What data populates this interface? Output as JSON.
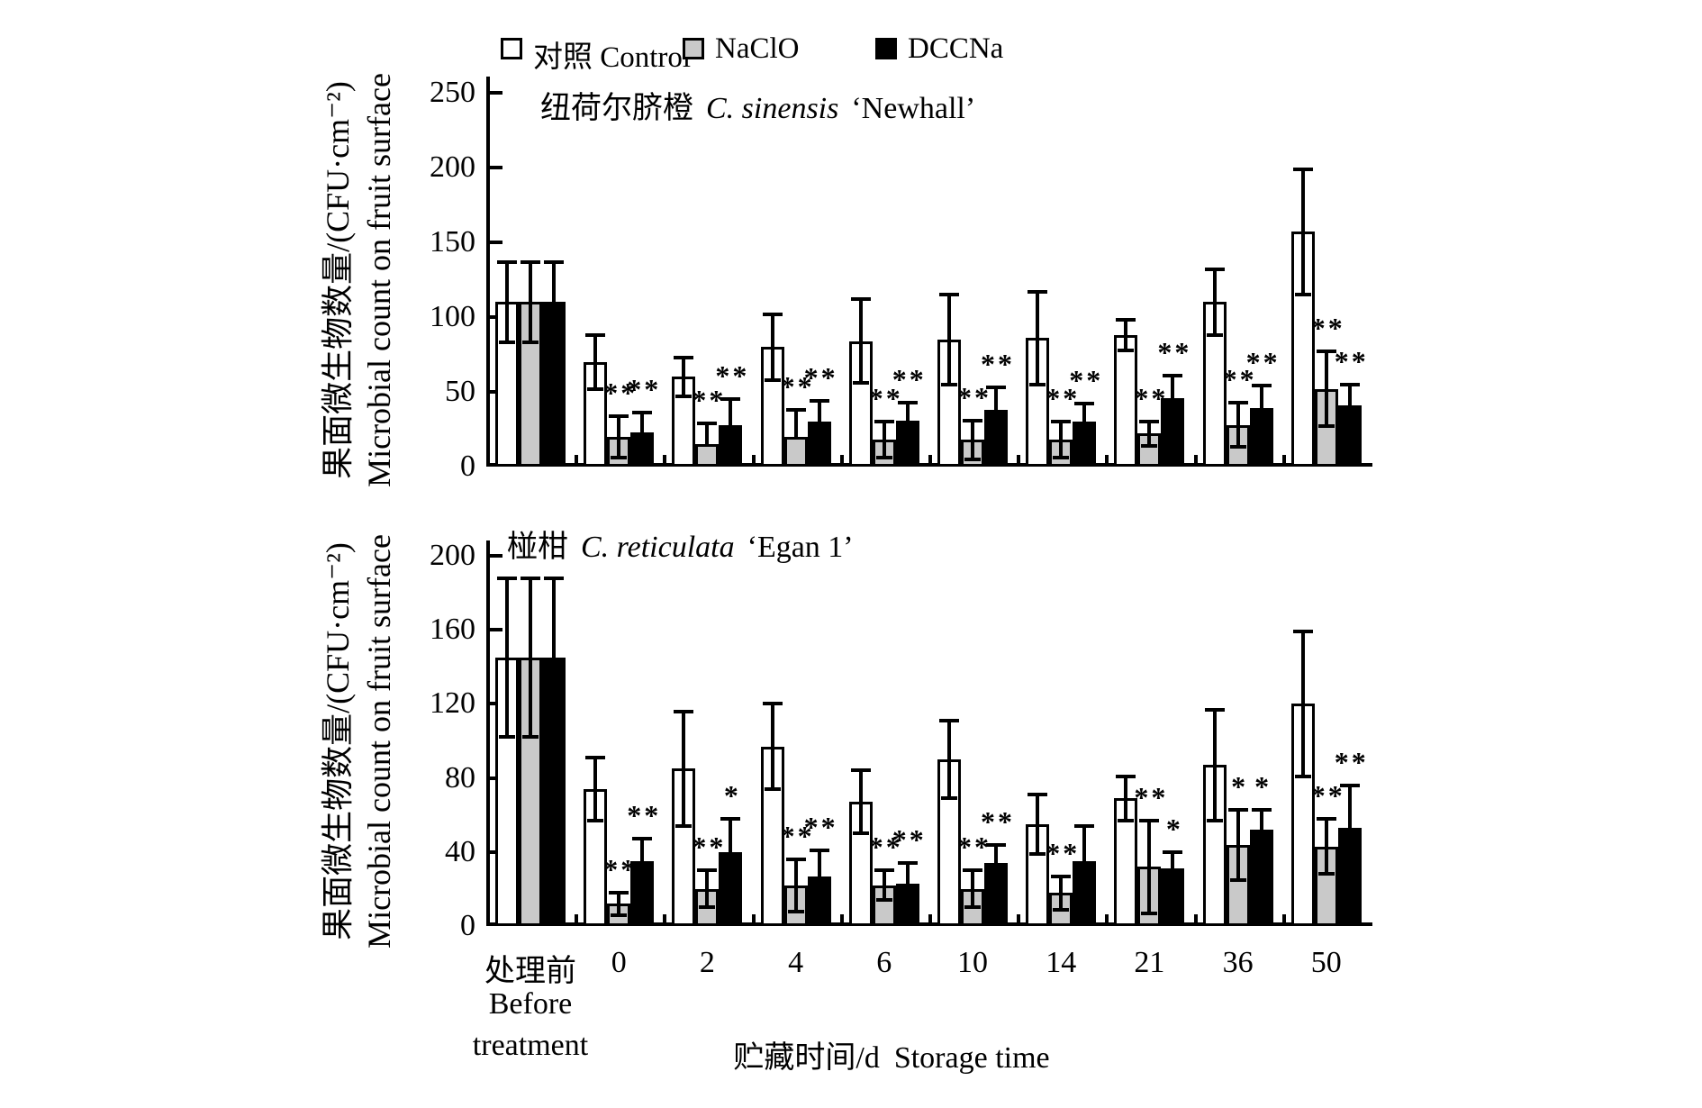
{
  "figure": {
    "background": "#ffffff",
    "legend": {
      "items": [
        {
          "label": "对照 Control",
          "fill": "#ffffff"
        },
        {
          "label": "NaClO",
          "fill": "#c9c9c9"
        },
        {
          "label": "DCCNa",
          "fill": "#000000"
        }
      ]
    },
    "y_axis_label": {
      "cn": "果面微生物数量/(CFU·cm⁻²)",
      "en": "Microbial count on fruit surface"
    },
    "x_axis": {
      "first_category": {
        "cn": "处理前",
        "en_line1": "Before",
        "en_line2": "treatment"
      },
      "tick_labels": [
        "0",
        "2",
        "4",
        "6",
        "10",
        "14",
        "21",
        "36",
        "50"
      ],
      "title_cn": "贮藏时间/d",
      "title_en": "Storage time"
    }
  },
  "chart_data": [
    {
      "type": "bar",
      "panel": "top",
      "title": {
        "cn": "纽荷尔脐橙",
        "latin": "C. sinensis",
        "cultivar": "‘Newhall’"
      },
      "ylim": [
        0,
        250
      ],
      "yticks": [
        0,
        50,
        100,
        150,
        200,
        250
      ],
      "grid": false,
      "legend_position": "top",
      "categories": [
        "处理前 Before treatment",
        "0",
        "2",
        "4",
        "6",
        "10",
        "14",
        "21",
        "36",
        "50"
      ],
      "series": [
        {
          "name": "对照 Control",
          "fill": "#ffffff",
          "values": [
            110,
            70,
            60,
            80,
            84,
            85,
            86,
            88,
            110,
            157
          ],
          "errors": [
            27,
            18,
            13,
            22,
            28,
            30,
            31,
            10,
            22,
            42
          ],
          "sig": [
            "",
            "",
            "",
            "",
            "",
            "",
            "",
            "",
            "",
            ""
          ]
        },
        {
          "name": "NaClO",
          "fill": "#c9c9c9",
          "values": [
            110,
            20,
            15,
            20,
            18,
            18,
            18,
            22,
            28,
            52
          ],
          "errors": [
            27,
            14,
            14,
            18,
            12,
            13,
            12,
            8,
            15,
            25
          ],
          "sig": [
            "",
            "**",
            "**",
            "**",
            "**",
            "**",
            "**",
            "**",
            "**",
            "**"
          ]
        },
        {
          "name": "DCCNa",
          "fill": "#000000",
          "values": [
            110,
            23,
            28,
            30,
            31,
            38,
            30,
            46,
            39,
            41
          ],
          "errors": [
            27,
            13,
            17,
            14,
            12,
            15,
            12,
            15,
            15,
            14
          ],
          "sig": [
            "",
            "**",
            "**",
            "**",
            "**",
            "**",
            "**",
            "**",
            "**",
            "**"
          ]
        }
      ]
    },
    {
      "type": "bar",
      "panel": "bottom",
      "title": {
        "cn": "椪柑",
        "latin": "C. reticulata",
        "cultivar": "‘Egan 1’"
      },
      "ylim": [
        0,
        200
      ],
      "yticks": [
        0,
        40,
        80,
        120,
        160,
        200
      ],
      "grid": false,
      "legend_position": "shared-top",
      "categories": [
        "处理前 Before treatment",
        "0",
        "2",
        "4",
        "6",
        "10",
        "14",
        "21",
        "36",
        "50"
      ],
      "series": [
        {
          "name": "对照 Control",
          "fill": "#ffffff",
          "values": [
            145,
            74,
            85,
            97,
            67,
            90,
            55,
            69,
            87,
            120
          ],
          "errors": [
            43,
            17,
            31,
            23,
            17,
            21,
            16,
            12,
            30,
            39
          ],
          "sig": [
            "",
            "",
            "",
            "",
            "",
            "",
            "",
            "",
            "",
            ""
          ]
        },
        {
          "name": "NaClO",
          "fill": "#c9c9c9",
          "values": [
            145,
            12,
            20,
            22,
            22,
            20,
            18,
            32,
            44,
            43
          ],
          "errors": [
            43,
            6,
            10,
            14,
            8,
            10,
            9,
            25,
            19,
            15
          ],
          "sig": [
            "",
            "**",
            "**",
            "**",
            "**",
            "**",
            "**",
            "**",
            "*",
            "**"
          ]
        },
        {
          "name": "DCCNa",
          "fill": "#000000",
          "values": [
            145,
            35,
            40,
            27,
            23,
            34,
            35,
            31,
            52,
            53
          ],
          "errors": [
            43,
            12,
            18,
            14,
            11,
            10,
            19,
            9,
            11,
            23
          ],
          "sig": [
            "",
            "**",
            "*",
            "**",
            "**",
            "**",
            "",
            "*",
            "*",
            "**"
          ]
        }
      ]
    }
  ]
}
